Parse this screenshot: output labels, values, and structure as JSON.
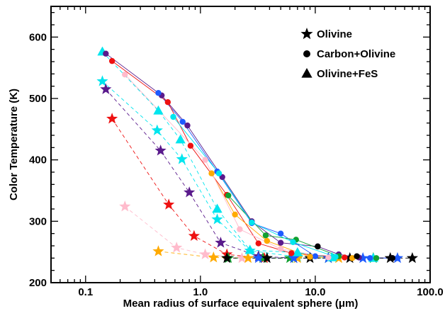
{
  "chart_data": {
    "type": "scatter",
    "xscale": "log",
    "xlim": [
      0.05,
      100.0
    ],
    "ylim": [
      200,
      650
    ],
    "xlabel": "Mean radius of surface equivalent sphere (μm)",
    "ylabel": "Color Temperature (K)",
    "x_ticks": [
      {
        "value": 0.1,
        "label": "0.1"
      },
      {
        "value": 1.0,
        "label": "1.0"
      },
      {
        "value": 10.0,
        "label": "10.0"
      },
      {
        "value": 100.0,
        "label": "100.0"
      }
    ],
    "y_ticks": [
      {
        "value": 200,
        "label": "200"
      },
      {
        "value": 300,
        "label": "300"
      },
      {
        "value": 400,
        "label": "400"
      },
      {
        "value": 500,
        "label": "500"
      },
      {
        "value": 600,
        "label": "600"
      }
    ],
    "legend": [
      {
        "marker": "star",
        "label": "Olivine"
      },
      {
        "marker": "circle",
        "label": "Carbon+Olivine"
      },
      {
        "marker": "triangle",
        "label": "Olivine+FeS"
      }
    ],
    "legend_position": "top-right",
    "grid": false,
    "series": [
      {
        "marker": "circle",
        "color": "#5a1a8c",
        "line": "solid",
        "points": [
          [
            0.15,
            573
          ],
          [
            0.46,
            505
          ],
          [
            0.77,
            456
          ],
          [
            1.55,
            372
          ],
          [
            2.8,
            300
          ],
          [
            5.0,
            265
          ],
          [
            10.5,
            259
          ],
          [
            16,
            246
          ],
          [
            24,
            241
          ],
          [
            47,
            240
          ]
        ]
      },
      {
        "marker": "circle",
        "color": "#1e5aff",
        "line": "solid",
        "points": [
          [
            0.43,
            509
          ],
          [
            0.7,
            462
          ],
          [
            1.4,
            381
          ],
          [
            2.8,
            297
          ],
          [
            5.0,
            280
          ],
          [
            10.0,
            243
          ],
          [
            30,
            240
          ],
          [
            52,
            240
          ]
        ]
      },
      {
        "marker": "circle",
        "color": "#ee1111",
        "line": "solid",
        "points": [
          [
            0.17,
            561
          ],
          [
            0.52,
            494
          ],
          [
            0.82,
            423
          ],
          [
            1.7,
            343
          ],
          [
            3.2,
            264
          ],
          [
            6.2,
            248
          ],
          [
            18,
            241
          ]
        ]
      },
      {
        "marker": "circle",
        "color": "#11a031",
        "line": "solid",
        "points": [
          [
            1.75,
            342
          ],
          [
            3.7,
            277
          ],
          [
            6.8,
            270
          ],
          [
            16,
            243
          ],
          [
            34,
            240
          ]
        ]
      },
      {
        "marker": "circle",
        "color": "#ffaa00",
        "line": "solid",
        "points": [
          [
            1.25,
            378
          ],
          [
            2.0,
            311
          ],
          [
            3.8,
            268
          ],
          [
            9.0,
            242
          ],
          [
            21,
            240
          ]
        ]
      },
      {
        "marker": "circle",
        "color": "#ffbbcc",
        "line": "solid",
        "points": [
          [
            0.22,
            539
          ],
          [
            1.1,
            400
          ],
          [
            2.2,
            287
          ],
          [
            5.0,
            255
          ],
          [
            13,
            241
          ]
        ]
      },
      {
        "marker": "circle",
        "color": "#00e5ee",
        "line": "solid",
        "points": [
          [
            0.58,
            470
          ],
          [
            1.45,
            378
          ],
          [
            2.8,
            298
          ],
          [
            6.4,
            266
          ],
          [
            15,
            242
          ]
        ]
      },
      {
        "marker": "circle",
        "color": "#000000",
        "line": "none",
        "points": [
          [
            10.5,
            259
          ],
          [
            23,
            243
          ],
          [
            47,
            240
          ]
        ]
      },
      {
        "marker": "triangle",
        "color": "#00e5ee",
        "line": "dashed",
        "points": [
          [
            0.14,
            576
          ],
          [
            0.43,
            480
          ],
          [
            0.67,
            433
          ],
          [
            1.4,
            320
          ],
          [
            2.7,
            253
          ],
          [
            7.0,
            249
          ],
          [
            14,
            241
          ],
          [
            32,
            240
          ]
        ]
      },
      {
        "marker": "star",
        "color": "#00e5ee",
        "line": "dashed",
        "points": [
          [
            0.14,
            528
          ],
          [
            0.42,
            448
          ],
          [
            0.69,
            401
          ],
          [
            1.4,
            303
          ],
          [
            2.7,
            252
          ],
          [
            7.0,
            242
          ]
        ]
      },
      {
        "marker": "star",
        "color": "#5a1a8c",
        "line": "dashed",
        "points": [
          [
            0.15,
            515
          ],
          [
            0.45,
            415
          ],
          [
            0.8,
            347
          ],
          [
            1.5,
            265
          ],
          [
            3.2,
            243
          ],
          [
            6.5,
            240
          ]
        ]
      },
      {
        "marker": "star",
        "color": "#ee1111",
        "line": "dashed",
        "points": [
          [
            0.17,
            467
          ],
          [
            0.53,
            327
          ],
          [
            0.88,
            276
          ],
          [
            1.7,
            246
          ],
          [
            3.6,
            240
          ]
        ]
      },
      {
        "marker": "star",
        "color": "#ffbbcc",
        "line": "dashed",
        "points": [
          [
            0.22,
            324
          ],
          [
            0.62,
            257
          ],
          [
            1.1,
            246
          ],
          [
            2.3,
            240
          ]
        ]
      },
      {
        "marker": "star",
        "color": "#ffaa00",
        "line": "dashed",
        "points": [
          [
            0.43,
            251
          ],
          [
            1.3,
            241
          ],
          [
            2.6,
            240
          ],
          [
            7.0,
            240
          ],
          [
            16,
            240
          ]
        ]
      },
      {
        "marker": "star",
        "color": "#11a031",
        "line": "dashed",
        "points": [
          [
            1.75,
            240
          ],
          [
            3.5,
            240
          ],
          [
            6.0,
            240
          ],
          [
            13,
            240
          ],
          [
            32,
            240
          ]
        ]
      },
      {
        "marker": "star",
        "color": "#1e5aff",
        "line": "dashed",
        "points": [
          [
            3.2,
            240
          ],
          [
            6.5,
            240
          ],
          [
            13,
            240
          ],
          [
            26,
            240
          ],
          [
            52,
            240
          ]
        ]
      },
      {
        "marker": "star",
        "color": "#000000",
        "line": "dashed",
        "points": [
          [
            1.7,
            240
          ],
          [
            3.8,
            240
          ],
          [
            9.0,
            240
          ],
          [
            20,
            240
          ],
          [
            45,
            240
          ],
          [
            70,
            240
          ]
        ]
      }
    ]
  }
}
